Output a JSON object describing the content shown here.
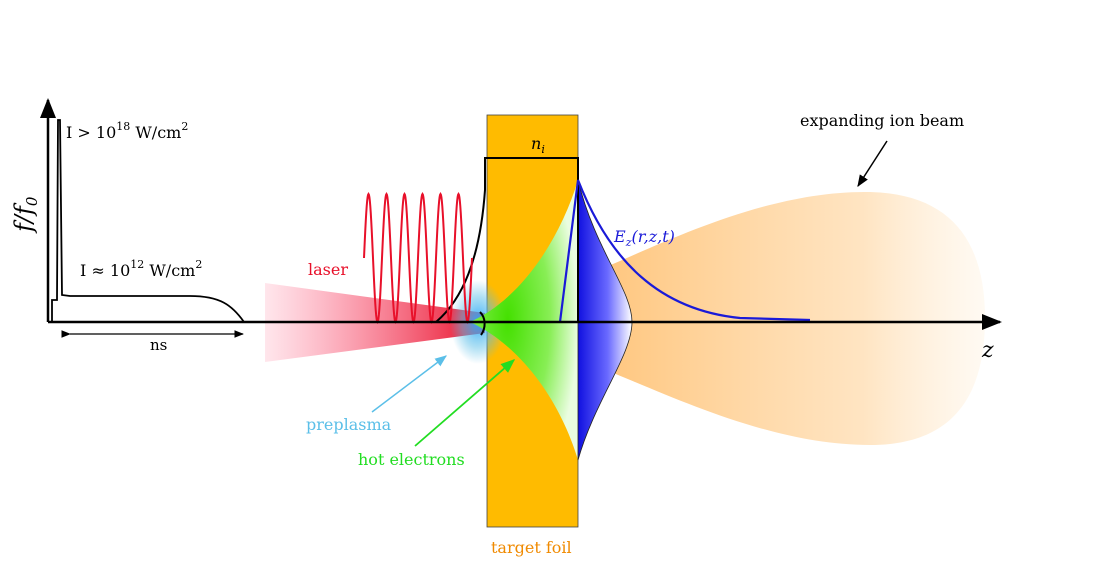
{
  "labels": {
    "ylabel": "f/f",
    "ylabel_sub": "0",
    "peak_intensity_base": "I > 10",
    "peak_intensity_exp": "18",
    "peak_intensity_unit": " W/cm",
    "peak_intensity_unit_exp": "2",
    "pedestal_intensity_base": "I ≈ 10",
    "pedestal_intensity_exp": "12",
    "pedestal_intensity_unit": " W/cm",
    "pedestal_intensity_unit_exp": "2",
    "duration": "ns",
    "laser": "laser",
    "preplasma": "preplasma",
    "hot_electrons": "hot electrons",
    "target_foil": "target foil",
    "ion_density": "n",
    "ion_density_sub": "i",
    "field": "E",
    "field_sub": "z",
    "field_args": "(r,z,t)",
    "ion_beam": "expanding ion beam",
    "z_axis": "z"
  },
  "colors": {
    "laser": "#e8102a",
    "preplasma": "#5bbfe8",
    "hot_electrons": "#22dd22",
    "target_foil": "#ffbb00",
    "target_foil_label": "#f08a00",
    "field": "#1a1ad8",
    "ion_beam": "#ffcf88",
    "axes": "#000000"
  }
}
